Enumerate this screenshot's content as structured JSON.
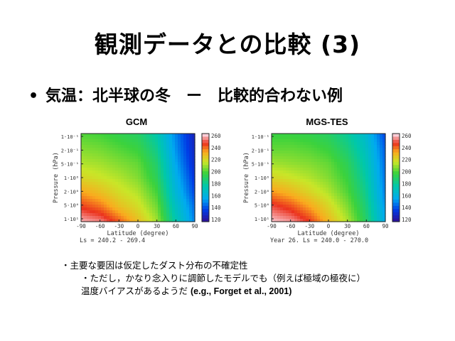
{
  "slide": {
    "title": "観測データとの比較 (3)",
    "bullet_symbol": "•",
    "bullet_text": "気温：北半球の冬　ー　比較的合わない例"
  },
  "notes": {
    "line1": "・主要な要因は仮定したダスト分布の不確定性",
    "line2": "・ただし，かなり念入りに調節したモデルでも（例えば極域の極夜に）",
    "line3_main": "温度バイアスがあるようだ ",
    "line3_ref": "(e.g., Forget et al., 2001)"
  },
  "chart_data": [
    {
      "type": "heatmap",
      "title": "GCM",
      "xlabel": "Latitude (degree)",
      "ylabel": "Pressure (hPa)",
      "footer": "Ls = 240.2 - 269.4",
      "x_ticks": [
        "-90",
        "-60",
        "-30",
        "0",
        "30",
        "60",
        "90"
      ],
      "y_ticks": [
        "1·10⁻¹",
        "2·10⁻¹",
        "5·10⁻¹",
        "1·10⁰",
        "2·10⁰",
        "5·10⁰",
        "1·10¹"
      ],
      "colorbar_ticks": [
        "260",
        "240",
        "220",
        "200",
        "180",
        "160",
        "140",
        "120"
      ],
      "zlim": [
        120,
        260
      ],
      "x": [
        -90,
        -60,
        -30,
        0,
        30,
        60,
        90
      ],
      "y": [
        0.1,
        0.2,
        0.5,
        1,
        2,
        5,
        10
      ],
      "z": [
        [
          200,
          198,
          194,
          190,
          176,
          150,
          128
        ],
        [
          206,
          204,
          200,
          196,
          182,
          152,
          130
        ],
        [
          212,
          210,
          206,
          202,
          188,
          156,
          132
        ],
        [
          220,
          216,
          212,
          206,
          192,
          160,
          136
        ],
        [
          232,
          226,
          218,
          212,
          198,
          164,
          140
        ],
        [
          244,
          238,
          226,
          218,
          204,
          170,
          146
        ],
        [
          256,
          252,
          240,
          226,
          210,
          176,
          150
        ]
      ]
    },
    {
      "type": "heatmap",
      "title": "MGS-TES",
      "xlabel": "Latitude (degree)",
      "ylabel": "Pressure (hPa)",
      "footer": "Year 26.  Ls = 240.0 - 270.0",
      "x_ticks": [
        "-90",
        "-60",
        "-30",
        "0",
        "30",
        "60",
        "90"
      ],
      "y_ticks": [
        "1·10⁻¹",
        "2·10⁻¹",
        "5·10⁻¹",
        "1·10⁰",
        "2·10⁰",
        "5·10⁰",
        "1·10¹"
      ],
      "colorbar_ticks": [
        "260",
        "240",
        "220",
        "200",
        "180",
        "160",
        "140",
        "120"
      ],
      "zlim": [
        120,
        260
      ],
      "x": [
        -90,
        -60,
        -30,
        0,
        30,
        60,
        90
      ],
      "y": [
        0.1,
        0.2,
        0.5,
        1,
        2,
        5,
        10
      ],
      "z": [
        [
          196,
          196,
          194,
          190,
          180,
          166,
          140
        ],
        [
          202,
          202,
          200,
          196,
          186,
          170,
          144
        ],
        [
          210,
          208,
          206,
          202,
          192,
          174,
          146
        ],
        [
          220,
          216,
          212,
          206,
          196,
          178,
          148
        ],
        [
          234,
          228,
          220,
          212,
          200,
          182,
          150
        ],
        [
          248,
          242,
          232,
          220,
          206,
          186,
          154
        ],
        [
          258,
          254,
          244,
          228,
          212,
          190,
          158
        ]
      ]
    }
  ]
}
